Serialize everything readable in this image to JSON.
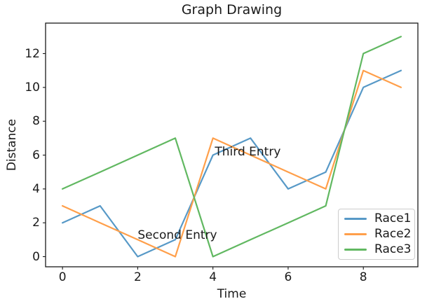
{
  "figure": {
    "background": "#ffffff"
  },
  "chart_data": {
    "type": "line",
    "title": "Graph Drawing",
    "xlabel": "Time",
    "ylabel": "Distance",
    "x": [
      0,
      1,
      2,
      3,
      4,
      5,
      6,
      7,
      8,
      9
    ],
    "series": [
      {
        "name": "Race1",
        "color": "#5799c7",
        "values": [
          2,
          3,
          0,
          1,
          6,
          7,
          4,
          5,
          10,
          11
        ]
      },
      {
        "name": "Race2",
        "color": "#ff9f4a",
        "values": [
          3,
          2,
          1,
          0,
          7,
          6,
          5,
          4,
          11,
          10
        ]
      },
      {
        "name": "Race3",
        "color": "#61b861",
        "values": [
          4,
          5,
          6,
          7,
          0,
          1,
          2,
          3,
          12,
          13
        ]
      }
    ],
    "xtick_labels": [
      "0",
      "2",
      "4",
      "6",
      "8"
    ],
    "xtick_values": [
      0,
      2,
      4,
      6,
      8
    ],
    "ytick_labels": [
      "0",
      "2",
      "4",
      "6",
      "8",
      "10",
      "12"
    ],
    "ytick_values": [
      0,
      2,
      4,
      6,
      8,
      10,
      12
    ],
    "xlim": [
      -0.45,
      9.45
    ],
    "ylim": [
      -0.6,
      13.8
    ],
    "grid": false,
    "legend": {
      "position": "lower right",
      "entries": [
        "Race1",
        "Race2",
        "Race3"
      ]
    },
    "annotations": [
      {
        "text": "Second Entry",
        "x": 2,
        "y": 1
      },
      {
        "text": "Third Entry",
        "x": 4.05,
        "y": 5.95
      }
    ],
    "axis_color": "#1a1a1a",
    "line_width": 2.2
  }
}
